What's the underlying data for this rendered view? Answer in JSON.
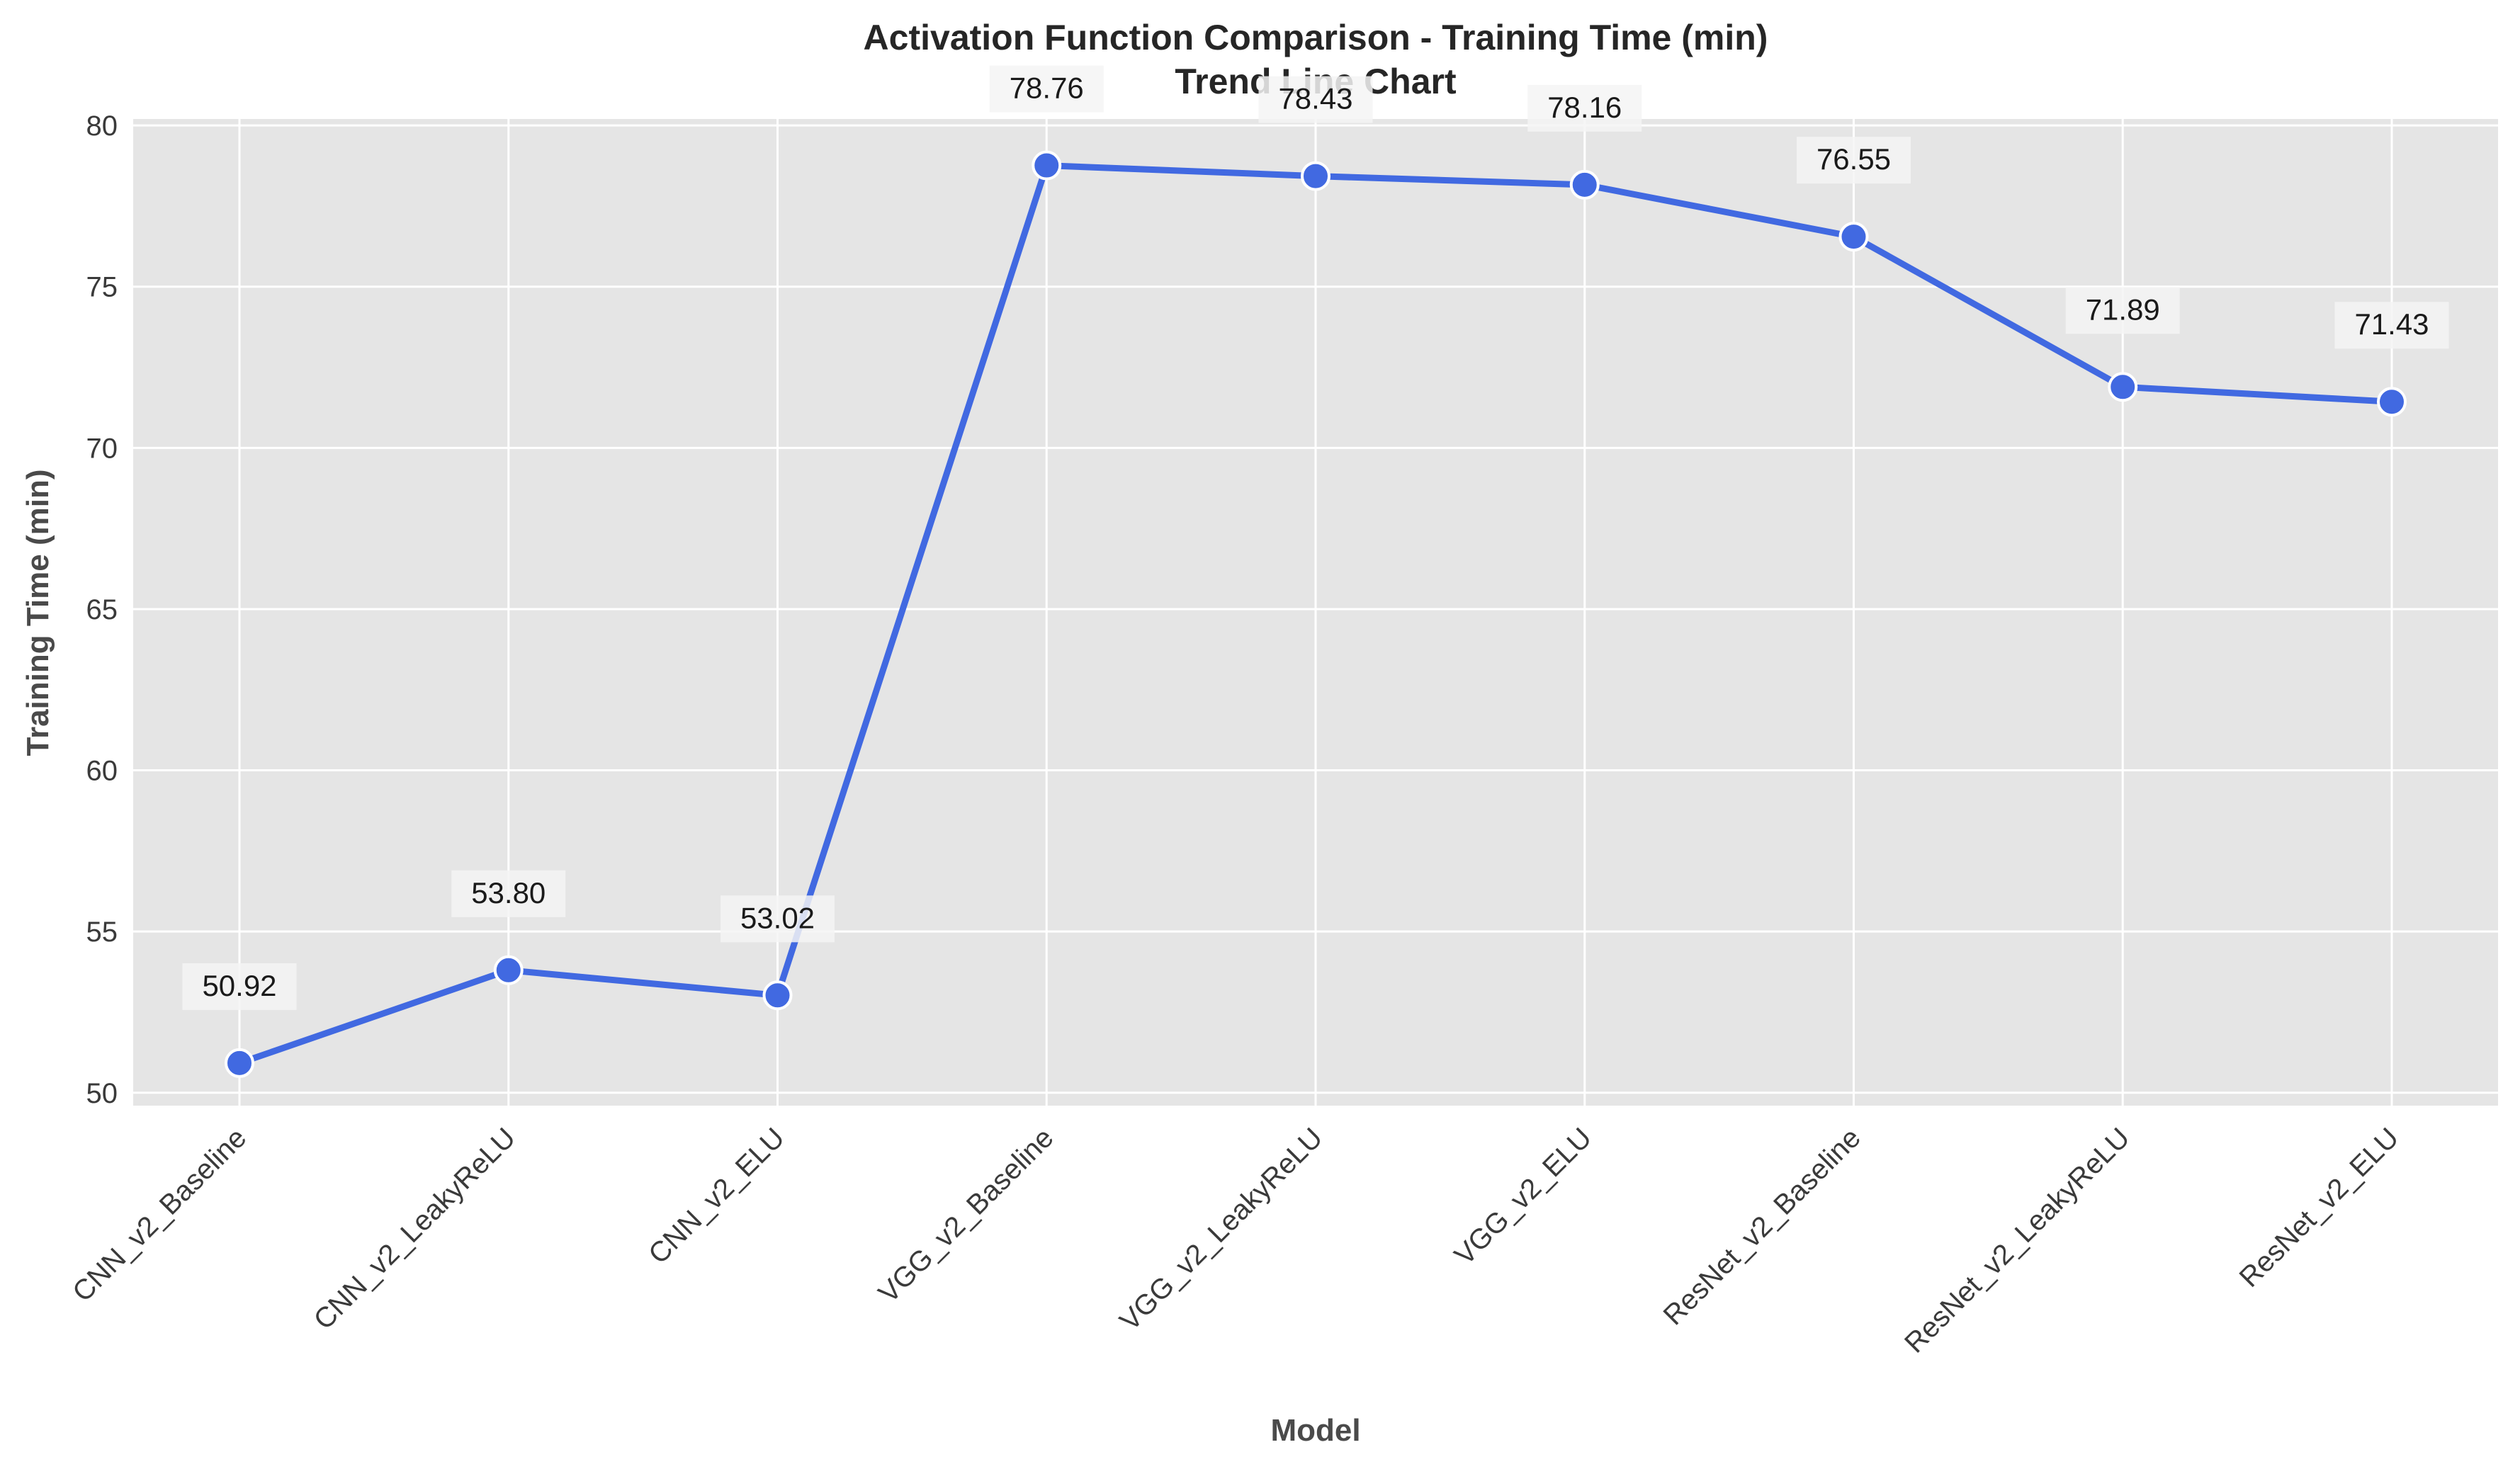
{
  "chart_data": {
    "type": "line",
    "title": "Activation Function Comparison - Training Time (min)",
    "subtitle": "Trend Line Chart",
    "xlabel": "Model",
    "ylabel": "Training Time (min)",
    "categories": [
      "CNN_v2_Baseline",
      "CNN_v2_LeakyReLU",
      "CNN_v2_ELU",
      "VGG_v2_Baseline",
      "VGG_v2_LeakyReLU",
      "VGG_v2_ELU",
      "ResNet_v2_Baseline",
      "ResNet_v2_LeakyReLU",
      "ResNet_v2_ELU"
    ],
    "values": [
      50.92,
      53.8,
      53.02,
      78.76,
      78.43,
      78.16,
      76.55,
      71.89,
      71.43
    ],
    "data_labels": [
      "50.92",
      "53.80",
      "53.02",
      "78.76",
      "78.43",
      "78.16",
      "76.55",
      "71.89",
      "71.43"
    ],
    "ylim": [
      49.6,
      80.2
    ],
    "yticks": [
      50,
      55,
      60,
      65,
      70,
      75,
      80
    ],
    "grid": true,
    "legend": "none",
    "colors": {
      "line": "#4169e1",
      "marker_edge": "#ffffff",
      "plot_background": "#e5e5e5",
      "grid": "#ffffff",
      "label_box": "#f4f4f4"
    }
  }
}
